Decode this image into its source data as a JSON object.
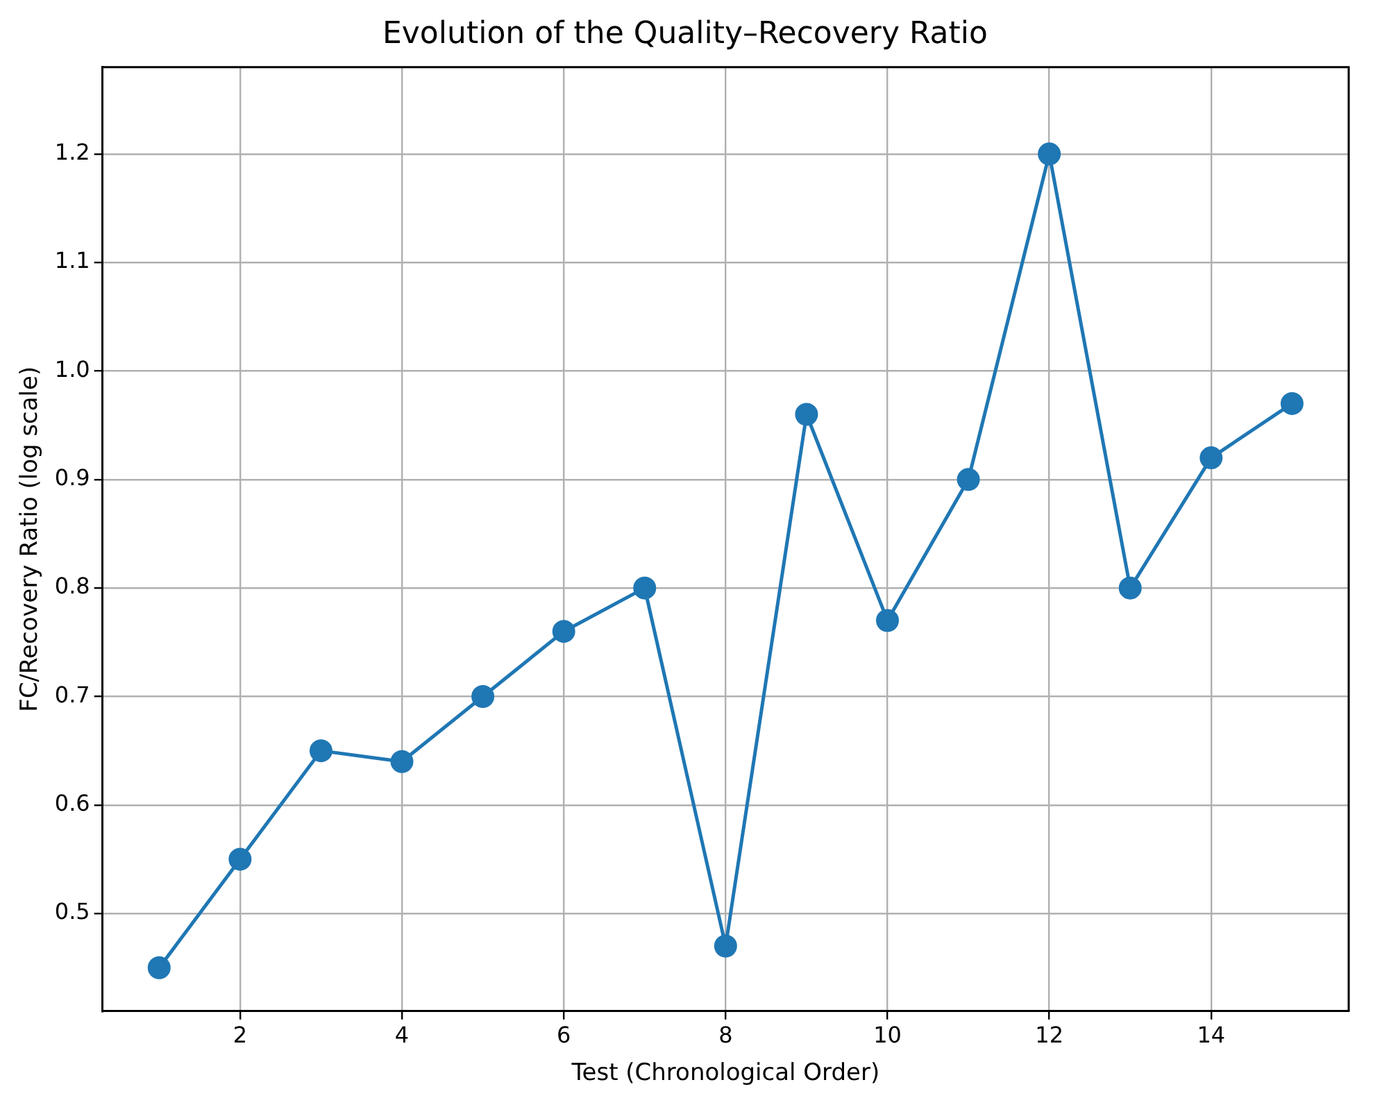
{
  "chart_data": {
    "type": "line",
    "title": "Evolution of the Quality–Recovery Ratio",
    "xlabel": "Test (Chronological Order)",
    "ylabel": "FC/Recovery Ratio (log scale)",
    "x": [
      1,
      2,
      3,
      4,
      5,
      6,
      7,
      8,
      9,
      10,
      11,
      12,
      13,
      14,
      15
    ],
    "series": [
      {
        "color": "#1f77b4",
        "values": [
          0.45,
          0.55,
          0.65,
          0.64,
          0.7,
          0.76,
          0.8,
          0.47,
          0.96,
          0.77,
          0.9,
          1.2,
          0.8,
          0.92,
          0.97
        ]
      }
    ],
    "xlim": [
      0.3,
      15.7
    ],
    "xticks": [
      2,
      4,
      6,
      8,
      10,
      12,
      14
    ],
    "ylim": [
      0.41,
      1.28
    ],
    "yticks": [
      {
        "value": 0.5,
        "label": "0.5"
      },
      {
        "value": 0.6,
        "label": "0.6"
      },
      {
        "value": 0.7,
        "label": "0.7"
      },
      {
        "value": 0.8,
        "label": "0.8"
      },
      {
        "value": 0.9,
        "label": "0.9"
      },
      {
        "value": 1.0,
        "label": "1.0"
      },
      {
        "value": 1.1,
        "label": "1.1"
      },
      {
        "value": 1.2,
        "label": "1.2"
      }
    ],
    "grid": true,
    "legend": false,
    "marker": "circle",
    "line_style": "solid"
  }
}
